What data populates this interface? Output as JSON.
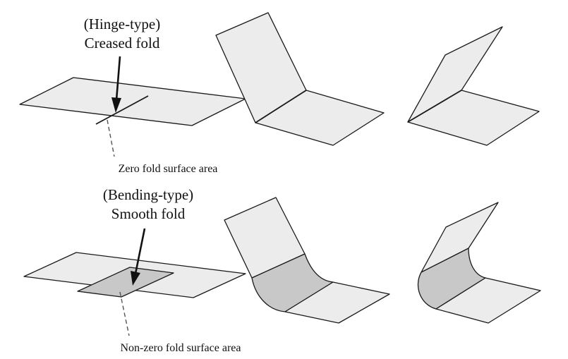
{
  "hinge": {
    "title_line1": "(Hinge-type)",
    "title_line2": "Creased fold",
    "note": "Zero fold surface area"
  },
  "bending": {
    "title_line1": "(Bending-type)",
    "title_line2": "Smooth fold",
    "note": "Non-zero fold surface area"
  },
  "colors": {
    "sheet_fill": "#ececec",
    "fold_region_fill": "#c8c8c8",
    "outline": "#1a1a1a"
  }
}
